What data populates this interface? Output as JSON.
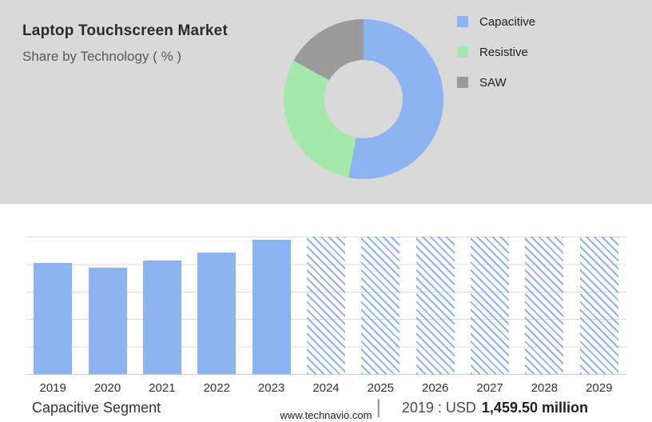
{
  "page": {
    "title": "Laptop Touchscreen Market",
    "subtitle": "Share by Technology ( % )",
    "footer": "www.technavio.com"
  },
  "bottom": {
    "segment_label": "Capacitive Segment",
    "separator": "|",
    "value_prefix": "2019 : USD",
    "value_bold": "1,459.50 million"
  },
  "colors": {
    "panel_gray": "#d9d9d9",
    "capacitive_blue": "#8db4f2",
    "resistive_green": "#a5e8ab",
    "saw_gray": "#9a9a9a"
  },
  "chart_data": [
    {
      "type": "pie",
      "title": "Laptop Touchscreen Market",
      "subtitle": "Share by Technology ( % )",
      "labels": [
        "Capacitive",
        "Resistive",
        "SAW"
      ],
      "values": [
        53,
        30,
        17
      ],
      "colors": [
        "#8db4f2",
        "#a5e8ab",
        "#9a9a9a"
      ],
      "legend_position": "right",
      "note": "Donut chart; no data labels shown, percentages estimated from arc angles"
    },
    {
      "type": "bar",
      "categories": [
        "2019",
        "2020",
        "2021",
        "2022",
        "2023",
        "2024",
        "2025",
        "2026",
        "2027",
        "2028",
        "2029"
      ],
      "values": [
        1459.5,
        1390,
        1490,
        1590,
        1760,
        null,
        null,
        null,
        null,
        null,
        null
      ],
      "forecast": [
        false,
        false,
        false,
        false,
        false,
        true,
        true,
        true,
        true,
        true,
        true
      ],
      "bar_color": "#8db4f2",
      "ylim": [
        0,
        1800
      ],
      "grid": true,
      "xlabel": "",
      "ylabel": "",
      "note": "Only 2019 value labeled on page (USD 1,459.50 million); 2020-2023 estimated from bar heights; 2024-2029 are full-height hatched forecast bars"
    }
  ]
}
